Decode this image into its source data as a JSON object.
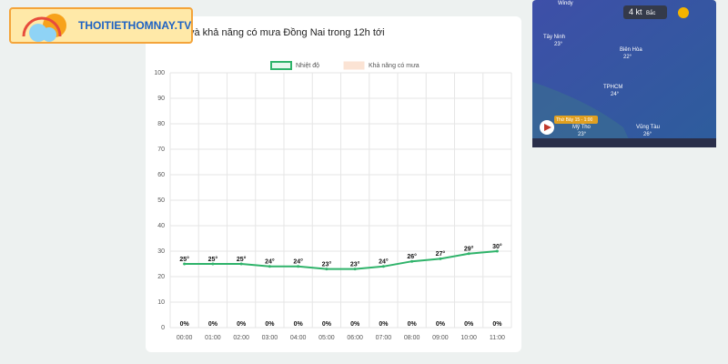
{
  "logo": {
    "text": "THOITIETHOMNAY.TV"
  },
  "chart_data": {
    "type": "line",
    "title": "và khả năng có mưa Đồng Nai trong 12h tới",
    "categories": [
      "00:00",
      "01:00",
      "02:00",
      "03:00",
      "04:00",
      "05:00",
      "06:00",
      "07:00",
      "08:00",
      "09:00",
      "10:00",
      "11:00"
    ],
    "series": [
      {
        "name": "Nhiệt độ",
        "color": "#2fb36a",
        "values": [
          25,
          25,
          25,
          24,
          24,
          23,
          23,
          24,
          26,
          27,
          29,
          30
        ],
        "value_labels": [
          "25°",
          "25°",
          "25°",
          "24°",
          "24°",
          "23°",
          "23°",
          "24°",
          "26°",
          "27°",
          "29°",
          "30°"
        ]
      },
      {
        "name": "Khả năng có mưa",
        "color": "#fbe3d4",
        "values": [
          0,
          0,
          0,
          0,
          0,
          0,
          0,
          0,
          0,
          0,
          0,
          0
        ],
        "value_labels": [
          "0%",
          "0%",
          "0%",
          "0%",
          "0%",
          "0%",
          "0%",
          "0%",
          "0%",
          "0%",
          "0%",
          "0%"
        ]
      }
    ],
    "ylim": [
      0,
      100
    ],
    "yticks": [
      0,
      10,
      20,
      30,
      40,
      50,
      60,
      70,
      80,
      90,
      100
    ],
    "grid": true
  },
  "map": {
    "brand": "Windy",
    "wind": "4 kt",
    "direction": "Bắc",
    "time": "Thứ Bảy 15 - 1:00",
    "labels": [
      "Tây Ninh",
      "23°",
      "TPHCM",
      "24°",
      "Vũng Tàu",
      "26°",
      "Mỹ Tho",
      "23°",
      "Biên Hòa",
      "22°"
    ]
  }
}
